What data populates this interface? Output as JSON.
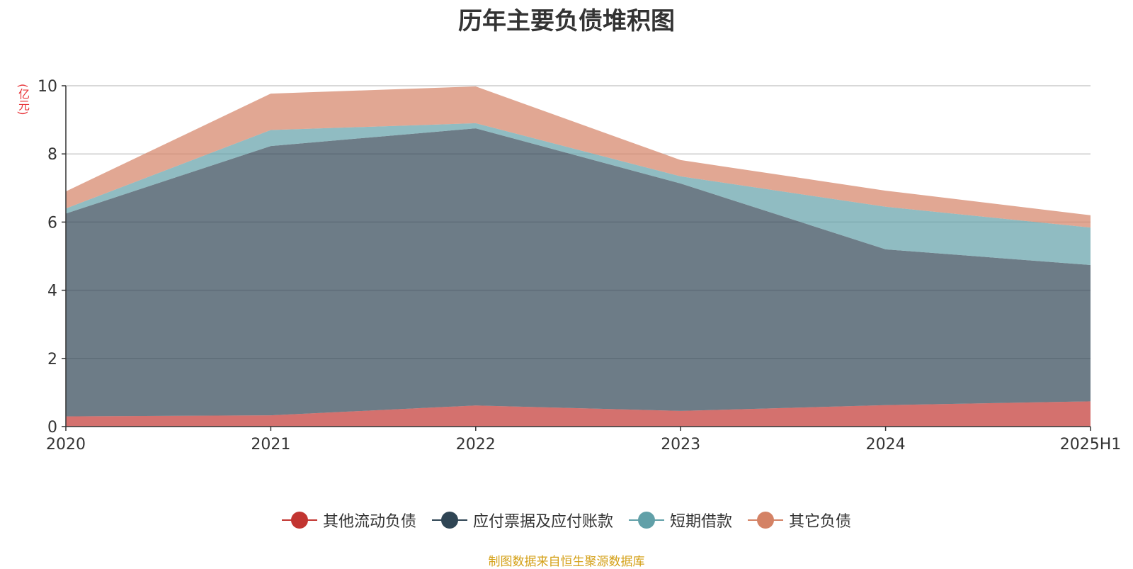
{
  "chart_data": {
    "type": "area",
    "stacked": true,
    "title": "历年主要负债堆积图",
    "ylabel": "(亿元)",
    "xlabel": "",
    "categories": [
      "2020",
      "2021",
      "2022",
      "2023",
      "2024",
      "2025H1"
    ],
    "ylim": [
      0,
      10
    ],
    "yticks": [
      0,
      2,
      4,
      6,
      8,
      10
    ],
    "grid": true,
    "legend_position": "bottom",
    "series": [
      {
        "name": "其他流动负债",
        "color": "#c23531",
        "values": [
          0.3,
          0.33,
          0.62,
          0.46,
          0.63,
          0.74
        ]
      },
      {
        "name": "应付票据及应付账款",
        "color": "#2f4554",
        "values": [
          5.95,
          7.9,
          8.13,
          6.67,
          4.57,
          4.0
        ]
      },
      {
        "name": "短期借款",
        "color": "#61a0a8",
        "values": [
          0.15,
          0.47,
          0.15,
          0.21,
          1.25,
          1.1
        ]
      },
      {
        "name": "其它负债",
        "color": "#d48265",
        "values": [
          0.5,
          1.07,
          1.08,
          0.48,
          0.47,
          0.36
        ]
      }
    ]
  },
  "source_note": "制图数据来自恒生聚源数据库"
}
